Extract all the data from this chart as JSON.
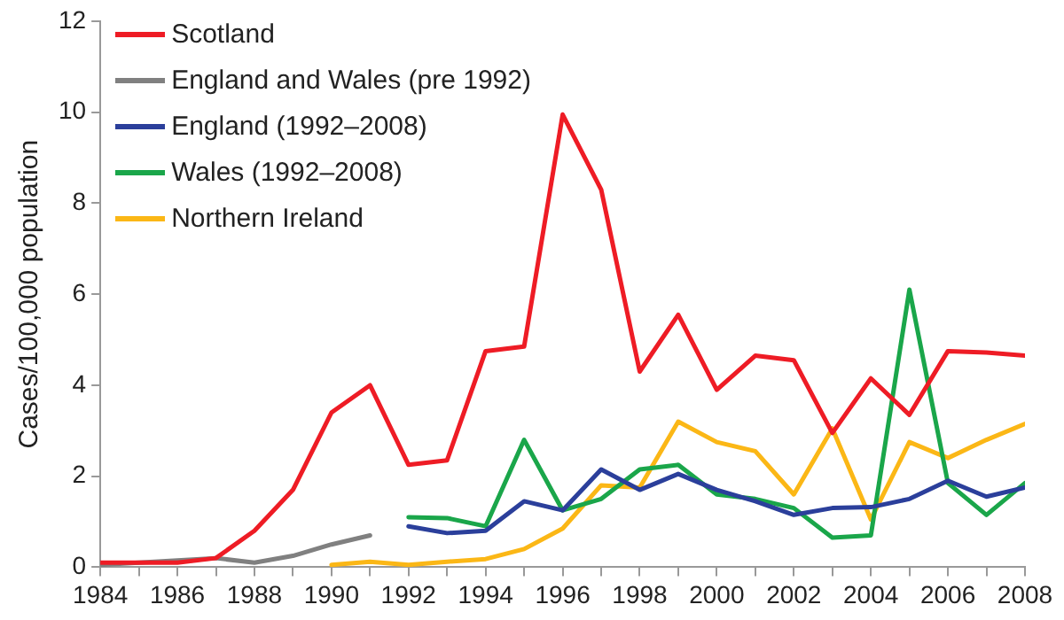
{
  "chart_data": {
    "type": "line",
    "ylabel": "Cases/100,000 population",
    "xlim": [
      1984,
      2008
    ],
    "ylim": [
      0,
      12
    ],
    "xticks": [
      1984,
      {
        "value": 1985,
        "label": null
      },
      1986,
      {
        "value": 1987,
        "label": null
      },
      1988,
      {
        "value": 1989,
        "label": null
      },
      1990,
      {
        "value": 1991,
        "label": null
      },
      1992,
      {
        "value": 1993,
        "label": null
      },
      1994,
      {
        "value": 1995,
        "label": null
      },
      1996,
      {
        "value": 1997,
        "label": null
      },
      1998,
      {
        "value": 1999,
        "label": null
      },
      2000,
      {
        "value": 2001,
        "label": null
      },
      2002,
      {
        "value": 2003,
        "label": null
      },
      2004,
      {
        "value": 2005,
        "label": null
      },
      2006,
      {
        "value": 2007,
        "label": null
      },
      2008
    ],
    "yticks": [
      0,
      2,
      4,
      6,
      8,
      10,
      12
    ],
    "grid": false,
    "legend": "top left",
    "marker": "none",
    "line_style": "solid",
    "series": [
      {
        "name": "Scotland",
        "color": "#ee1c25",
        "x": [
          1984,
          1985,
          1986,
          1987,
          1988,
          1989,
          1990,
          1991,
          1992,
          1993,
          1994,
          1995,
          1996,
          1997,
          1998,
          1999,
          2000,
          2001,
          2002,
          2003,
          2004,
          2005,
          2006,
          2007,
          2008
        ],
        "values": [
          0.1,
          0.1,
          0.1,
          0.2,
          0.8,
          1.7,
          3.4,
          4.0,
          2.25,
          2.35,
          4.75,
          4.85,
          9.95,
          8.3,
          4.3,
          5.55,
          3.9,
          4.65,
          4.55,
          2.95,
          4.15,
          3.35,
          4.75,
          4.72,
          4.65
        ]
      },
      {
        "name": "England and Wales (pre 1992)",
        "color": "#808080",
        "x": [
          1984,
          1985,
          1986,
          1987,
          1988,
          1989,
          1990,
          1991
        ],
        "values": [
          0.05,
          0.1,
          0.15,
          0.2,
          0.1,
          0.25,
          0.5,
          0.7
        ]
      },
      {
        "name": "England (1992–2008)",
        "color": "#2b3f9b",
        "x": [
          1992,
          1993,
          1994,
          1995,
          1996,
          1997,
          1998,
          1999,
          2000,
          2001,
          2002,
          2003,
          2004,
          2005,
          2006,
          2007,
          2008
        ],
        "values": [
          0.9,
          0.75,
          0.8,
          1.45,
          1.25,
          2.15,
          1.7,
          2.05,
          1.7,
          1.45,
          1.15,
          1.3,
          1.32,
          1.5,
          1.9,
          1.55,
          1.75
        ]
      },
      {
        "name": "Wales (1992–2008)",
        "color": "#1aa64a",
        "x": [
          1992,
          1993,
          1994,
          1995,
          1996,
          1997,
          1998,
          1999,
          2000,
          2001,
          2002,
          2003,
          2004,
          2005,
          2006,
          2007,
          2008
        ],
        "values": [
          1.1,
          1.08,
          0.9,
          2.8,
          1.25,
          1.5,
          2.15,
          2.25,
          1.6,
          1.5,
          1.3,
          0.65,
          0.7,
          6.1,
          1.85,
          1.15,
          1.85
        ]
      },
      {
        "name": "Northern Ireland",
        "color": "#fbb716",
        "x": [
          1990,
          1991,
          1992,
          1993,
          1994,
          1995,
          1996,
          1997,
          1998,
          1999,
          2000,
          2001,
          2002,
          2003,
          2004,
          2005,
          2006,
          2007,
          2008
        ],
        "values": [
          0.05,
          0.12,
          0.05,
          0.12,
          0.18,
          0.4,
          0.85,
          1.8,
          1.75,
          3.2,
          2.75,
          2.55,
          1.6,
          3.05,
          1.05,
          2.75,
          2.4,
          2.8,
          3.15
        ]
      }
    ]
  }
}
